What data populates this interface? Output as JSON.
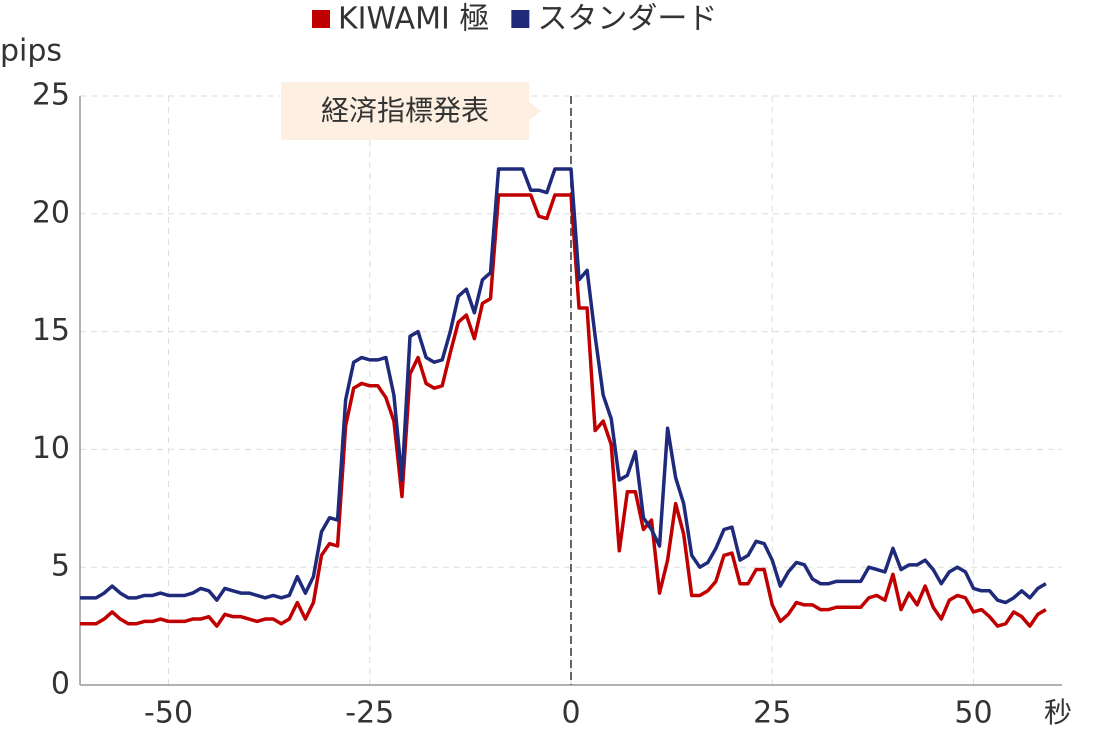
{
  "chart_data": {
    "type": "line",
    "y_label": "pips",
    "x_label": "秒",
    "annotation": {
      "text": "経済指標発表",
      "x": 0
    },
    "x": [
      -61,
      -60,
      -59,
      -58,
      -57,
      -56,
      -55,
      -54,
      -53,
      -52,
      -51,
      -50,
      -49,
      -48,
      -47,
      -46,
      -45,
      -44,
      -43,
      -42,
      -41,
      -40,
      -39,
      -38,
      -37,
      -36,
      -35,
      -34,
      -33,
      -32,
      -31,
      -30,
      -29,
      -28,
      -27,
      -26,
      -25,
      -24,
      -23,
      -22,
      -21,
      -20,
      -19,
      -18,
      -17,
      -16,
      -15,
      -14,
      -13,
      -12,
      -11,
      -10,
      -9,
      -8,
      -7,
      -6,
      -5,
      -4,
      -3,
      -2,
      -1,
      0,
      1,
      2,
      3,
      4,
      5,
      6,
      7,
      8,
      9,
      10,
      11,
      12,
      13,
      14,
      15,
      16,
      17,
      18,
      19,
      20,
      21,
      22,
      23,
      24,
      25,
      26,
      27,
      28,
      29,
      30,
      31,
      32,
      33,
      34,
      35,
      36,
      37,
      38,
      39,
      40,
      41,
      42,
      43,
      44,
      45,
      46,
      47,
      48,
      49,
      50,
      51,
      52,
      53,
      54,
      55,
      56,
      57,
      58,
      59
    ],
    "series": [
      {
        "name": "KIWAMI 極",
        "color": "#c00000",
        "values": [
          2.6,
          2.6,
          2.6,
          2.8,
          3.1,
          2.8,
          2.6,
          2.6,
          2.7,
          2.7,
          2.8,
          2.7,
          2.7,
          2.7,
          2.8,
          2.8,
          2.9,
          2.5,
          3.0,
          2.9,
          2.9,
          2.8,
          2.7,
          2.8,
          2.8,
          2.6,
          2.8,
          3.5,
          2.8,
          3.5,
          5.5,
          6.0,
          5.9,
          11.0,
          12.6,
          12.8,
          12.7,
          12.7,
          12.2,
          11.2,
          8.0,
          13.2,
          13.9,
          12.8,
          12.6,
          12.7,
          14.1,
          15.4,
          15.7,
          14.7,
          16.2,
          16.4,
          20.8,
          20.8,
          20.8,
          20.8,
          20.8,
          19.9,
          19.8,
          20.8,
          20.8,
          20.8,
          16.0,
          16.0,
          10.8,
          11.2,
          10.2,
          5.7,
          8.2,
          8.2,
          6.6,
          7.0,
          3.9,
          5.3,
          7.7,
          6.4,
          3.8,
          3.8,
          4.0,
          4.4,
          5.5,
          5.6,
          4.3,
          4.3,
          4.9,
          4.9,
          3.4,
          2.7,
          3.0,
          3.5,
          3.4,
          3.4,
          3.2,
          3.2,
          3.3,
          3.3,
          3.3,
          3.3,
          3.7,
          3.8,
          3.6,
          4.7,
          3.2,
          3.9,
          3.4,
          4.2,
          3.3,
          2.8,
          3.6,
          3.8,
          3.7,
          3.1,
          3.2,
          2.9,
          2.5,
          2.6,
          3.1,
          2.9,
          2.5,
          3.0,
          3.2
        ]
      },
      {
        "name": "スタンダード",
        "color": "#1f2a7a",
        "values": [
          3.7,
          3.7,
          3.7,
          3.9,
          4.2,
          3.9,
          3.7,
          3.7,
          3.8,
          3.8,
          3.9,
          3.8,
          3.8,
          3.8,
          3.9,
          4.1,
          4.0,
          3.6,
          4.1,
          4.0,
          3.9,
          3.9,
          3.8,
          3.7,
          3.8,
          3.7,
          3.8,
          4.6,
          3.9,
          4.6,
          6.5,
          7.1,
          7.0,
          12.1,
          13.7,
          13.9,
          13.8,
          13.8,
          13.9,
          12.3,
          8.7,
          14.8,
          15.0,
          13.9,
          13.7,
          13.8,
          15.0,
          16.5,
          16.8,
          15.8,
          17.2,
          17.5,
          21.9,
          21.9,
          21.9,
          21.9,
          21.0,
          21.0,
          20.9,
          21.9,
          21.9,
          21.9,
          17.2,
          17.6,
          14.8,
          12.3,
          11.3,
          8.7,
          8.9,
          9.9,
          7.1,
          6.6,
          5.9,
          10.9,
          8.8,
          7.7,
          5.5,
          5.0,
          5.2,
          5.8,
          6.6,
          6.7,
          5.3,
          5.5,
          6.1,
          6.0,
          5.3,
          4.2,
          4.8,
          5.2,
          5.1,
          4.5,
          4.3,
          4.3,
          4.4,
          4.4,
          4.4,
          4.4,
          5.0,
          4.9,
          4.8,
          5.8,
          4.9,
          5.1,
          5.1,
          5.3,
          4.9,
          4.3,
          4.8,
          5.0,
          4.8,
          4.1,
          4.0,
          4.0,
          3.6,
          3.5,
          3.7,
          4.0,
          3.7,
          4.1,
          4.3
        ]
      }
    ],
    "xlim": [
      -61,
      61
    ],
    "xticks": [
      -50,
      -25,
      0,
      25,
      50
    ],
    "ylim": [
      0,
      25
    ],
    "yticks": [
      0,
      5,
      10,
      15,
      20,
      25
    ],
    "grid": true,
    "legend": "top"
  }
}
